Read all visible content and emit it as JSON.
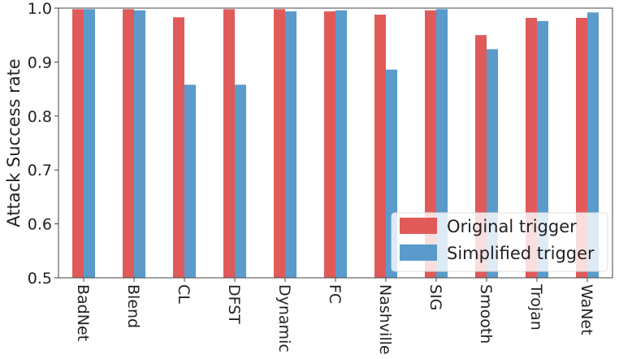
{
  "chart_data": {
    "type": "bar",
    "categories": [
      "BadNet",
      "Blend",
      "CL",
      "DFST",
      "Dynamic",
      "FC",
      "Nashville",
      "SIG",
      "Smooth",
      "Trojan",
      "WaNet"
    ],
    "series": [
      {
        "name": "Original trigger",
        "color": "#e05a5a",
        "values": [
          0.998,
          0.998,
          0.983,
          0.998,
          0.998,
          0.994,
          0.988,
          0.996,
          0.95,
          0.982,
          0.982
        ]
      },
      {
        "name": "Simplified trigger",
        "color": "#5a9bcc",
        "values": [
          0.998,
          0.996,
          0.858,
          0.858,
          0.994,
          0.996,
          0.886,
          0.998,
          0.924,
          0.976,
          0.992
        ]
      }
    ],
    "xlabel": "",
    "ylabel": "Attack Success rate",
    "ylim": [
      0.5,
      1.0
    ],
    "yticks": [
      "0.5",
      "0.6",
      "0.7",
      "0.8",
      "0.9",
      "1.0"
    ],
    "legend_position": "bottom-right",
    "grid": false
  }
}
